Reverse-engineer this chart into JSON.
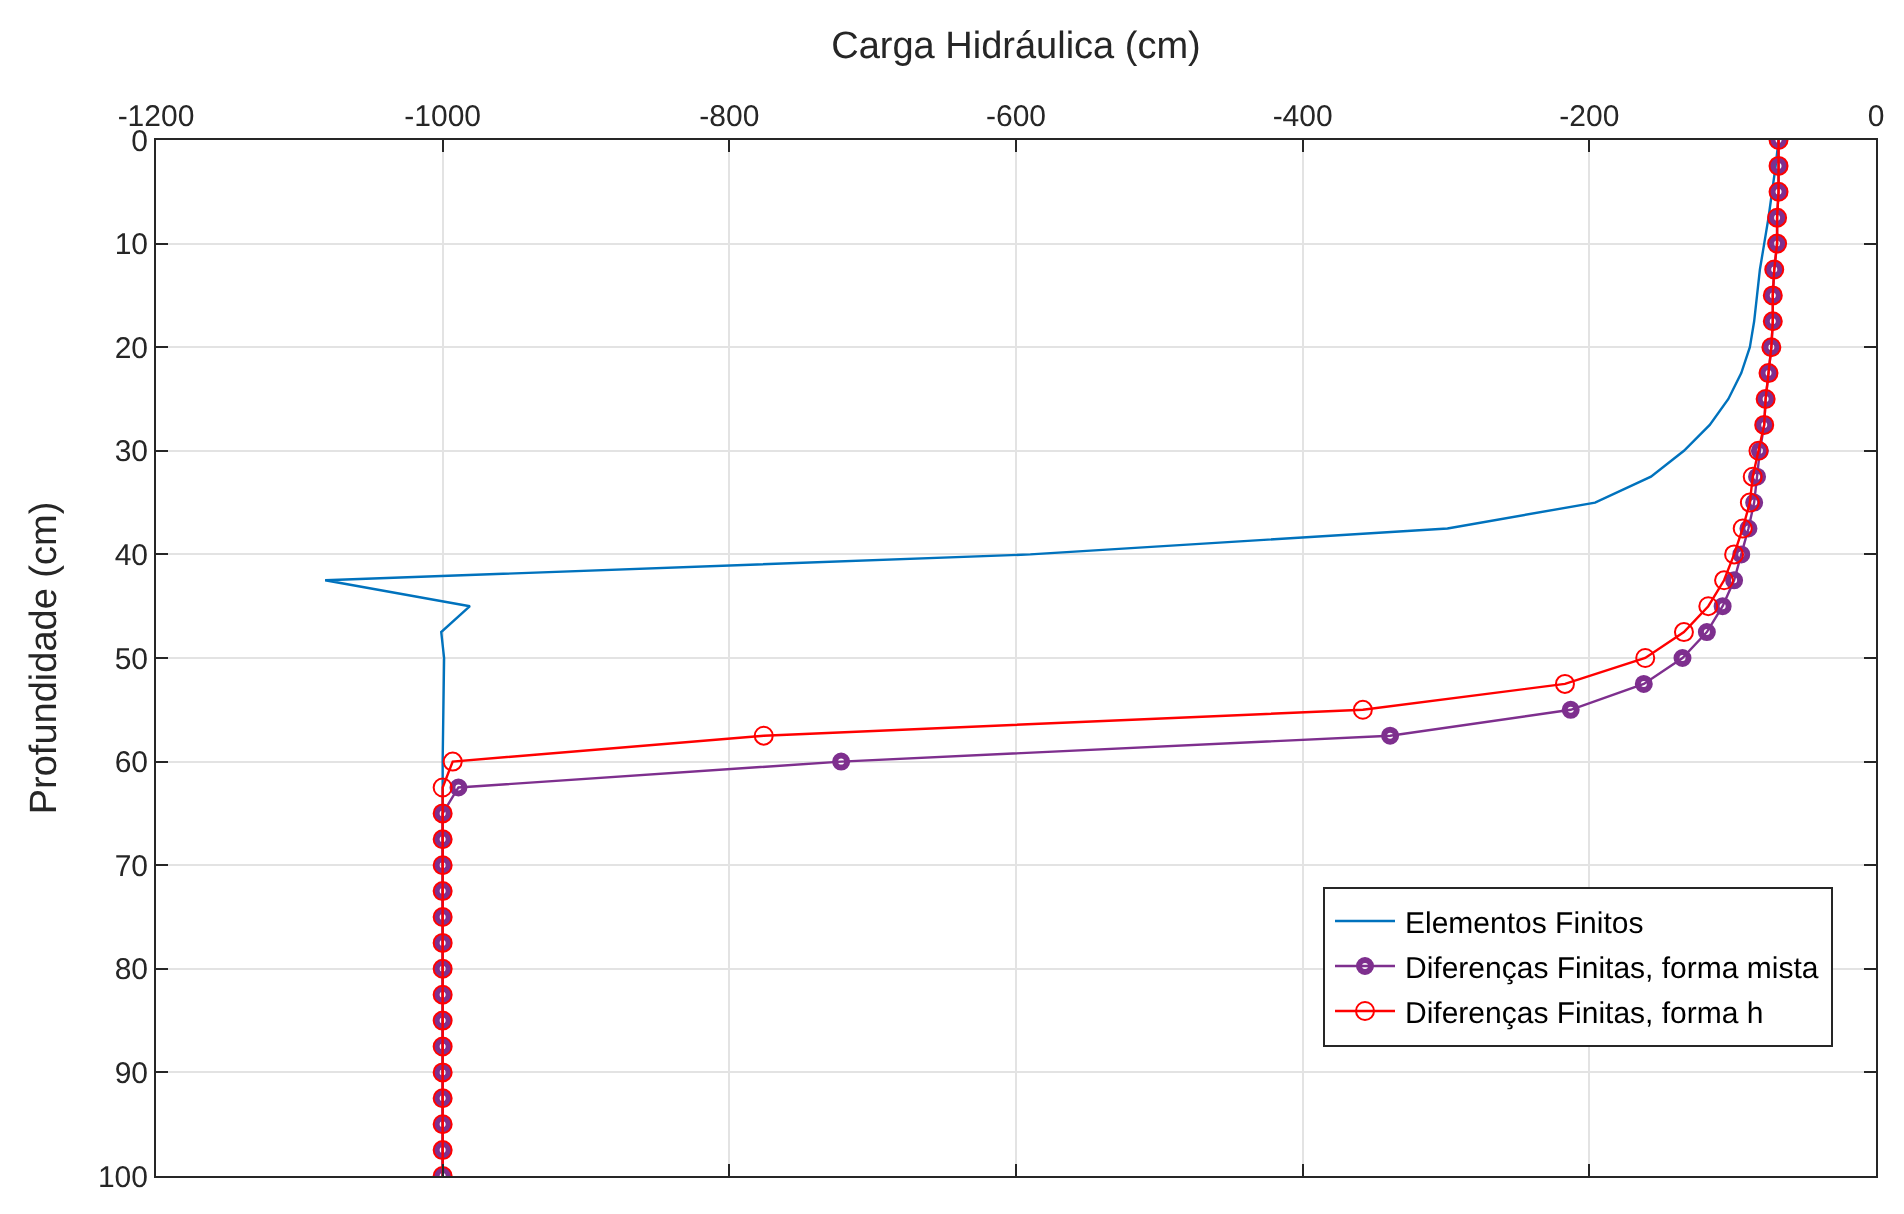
{
  "chart_data": {
    "type": "line",
    "xlabel": "Carga Hidráulica (cm)",
    "ylabel": "Profundidade (cm)",
    "xlim": [
      -1200,
      0
    ],
    "xticks": [
      -1200,
      -1000,
      -800,
      -600,
      -400,
      -200,
      0
    ],
    "ylim": [
      100,
      0
    ],
    "yticks": [
      0,
      10,
      20,
      30,
      40,
      50,
      60,
      70,
      80,
      90,
      100
    ],
    "grid": true,
    "legend": "bottom right",
    "series": [
      {
        "name": "Elementos Finitos",
        "color": "#0072bd",
        "marker": "none",
        "x": [
          -68,
          -70,
          -75,
          -78,
          -81,
          -83,
          -85,
          -88,
          -94,
          -103,
          -116,
          -134,
          -157,
          -196,
          -299,
          -590,
          -1082,
          -981,
          -1001,
          -999,
          -1000,
          -1000
        ],
        "values": [
          0,
          2.5,
          7.5,
          10,
          12.5,
          15,
          17.5,
          20,
          22.5,
          25,
          27.5,
          30,
          32.5,
          35,
          37.5,
          40,
          42.5,
          45,
          47.5,
          50,
          60,
          100
        ]
      },
      {
        "name": "Diferenças Finitas, forma mista",
        "color": "#7e2f8e",
        "marker": "circle",
        "x": [
          -68,
          -68,
          -68,
          -69,
          -69,
          -71,
          -72,
          -72,
          -73,
          -75,
          -77,
          -78,
          -81,
          -83,
          -85,
          -89,
          -94,
          -99,
          -107,
          -118,
          -135,
          -162,
          -213,
          -339,
          -722,
          -989,
          -1000,
          -1000,
          -1000,
          -1000,
          -1000,
          -1000,
          -1000,
          -1000,
          -1000,
          -1000,
          -1000,
          -1000,
          -1000,
          -1000,
          -1000
        ],
        "values": [
          0,
          2.5,
          5,
          7.5,
          10,
          12.5,
          15,
          17.5,
          20,
          22.5,
          25,
          27.5,
          30,
          32.5,
          35,
          37.5,
          40,
          42.5,
          45,
          47.5,
          50,
          52.5,
          55,
          57.5,
          60,
          62.5,
          65,
          67.5,
          70,
          72.5,
          75,
          77.5,
          80,
          82.5,
          85,
          87.5,
          90,
          92.5,
          95,
          97.5,
          100
        ]
      },
      {
        "name": "Diferenças Finitas, forma h",
        "color": "#ff0000",
        "marker": "circle",
        "x": [
          -68,
          -68,
          -68,
          -69,
          -69,
          -71,
          -72,
          -72,
          -73,
          -75,
          -77,
          -78,
          -82,
          -86,
          -88,
          -93,
          -99,
          -106,
          -117,
          -134,
          -161,
          -217,
          -358,
          -776,
          -993,
          -1000,
          -1000,
          -1000,
          -1000,
          -1000,
          -1000,
          -1000,
          -1000,
          -1000,
          -1000,
          -1000,
          -1000,
          -1000,
          -1000,
          -1000,
          -1000
        ],
        "values": [
          0,
          2.5,
          5,
          7.5,
          10,
          12.5,
          15,
          17.5,
          20,
          22.5,
          25,
          27.5,
          30,
          32.5,
          35,
          37.5,
          40,
          42.5,
          45,
          47.5,
          50,
          52.5,
          55,
          57.5,
          60,
          62.5,
          65,
          67.5,
          70,
          72.5,
          75,
          77.5,
          80,
          82.5,
          85,
          87.5,
          90,
          92.5,
          95,
          97.5,
          100
        ]
      }
    ]
  }
}
